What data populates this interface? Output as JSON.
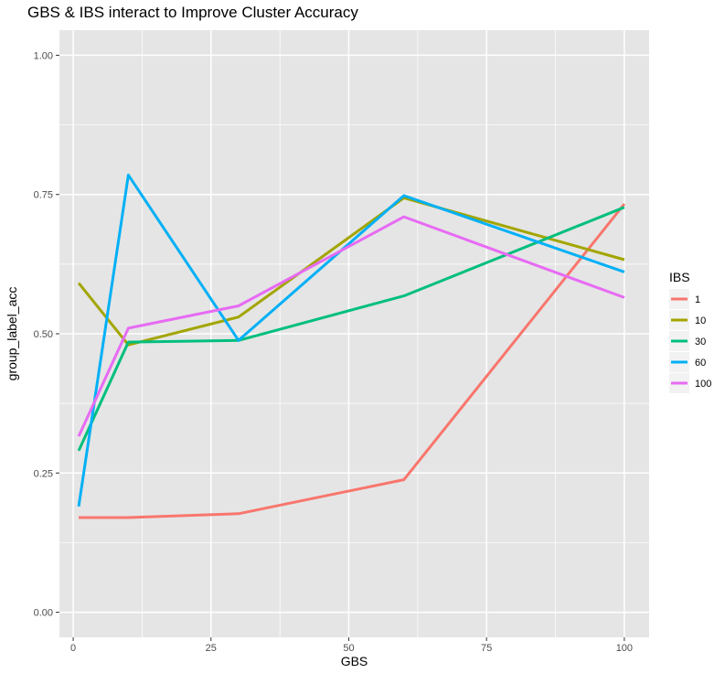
{
  "chart_data": {
    "type": "line",
    "title": "GBS & IBS interact to Improve Cluster Accuracy",
    "xlabel": "GBS",
    "ylabel": "group_label_acc",
    "x": [
      1,
      10,
      30,
      60,
      100
    ],
    "xlim": [
      -2.5,
      104.5
    ],
    "ylim": [
      -0.045,
      1.045
    ],
    "x_ticks": [
      0,
      25,
      50,
      75,
      100
    ],
    "x_tick_labels": [
      "0",
      "25",
      "50",
      "75",
      "100"
    ],
    "y_ticks": [
      0.0,
      0.25,
      0.5,
      0.75,
      1.0
    ],
    "y_tick_labels": [
      "0.00",
      "0.25",
      "0.50",
      "0.75",
      "1.00"
    ],
    "grid": true,
    "legend": {
      "title": "IBS",
      "position": "right"
    },
    "series": [
      {
        "name": "1",
        "color": "#F8766D",
        "values": [
          0.17,
          0.17,
          0.177,
          0.238,
          0.733
        ]
      },
      {
        "name": "10",
        "color": "#A3A500",
        "values": [
          0.591,
          0.48,
          0.53,
          0.744,
          0.633
        ]
      },
      {
        "name": "30",
        "color": "#00BF7D",
        "values": [
          0.29,
          0.485,
          0.488,
          0.568,
          0.727
        ]
      },
      {
        "name": "60",
        "color": "#00B0F6",
        "values": [
          0.19,
          0.785,
          0.488,
          0.748,
          0.611
        ]
      },
      {
        "name": "100",
        "color": "#E76BF3",
        "values": [
          0.316,
          0.51,
          0.55,
          0.71,
          0.565
        ]
      }
    ]
  },
  "colors": {
    "panel_background": "#E5E5E5",
    "grid": "#FFFFFF"
  }
}
